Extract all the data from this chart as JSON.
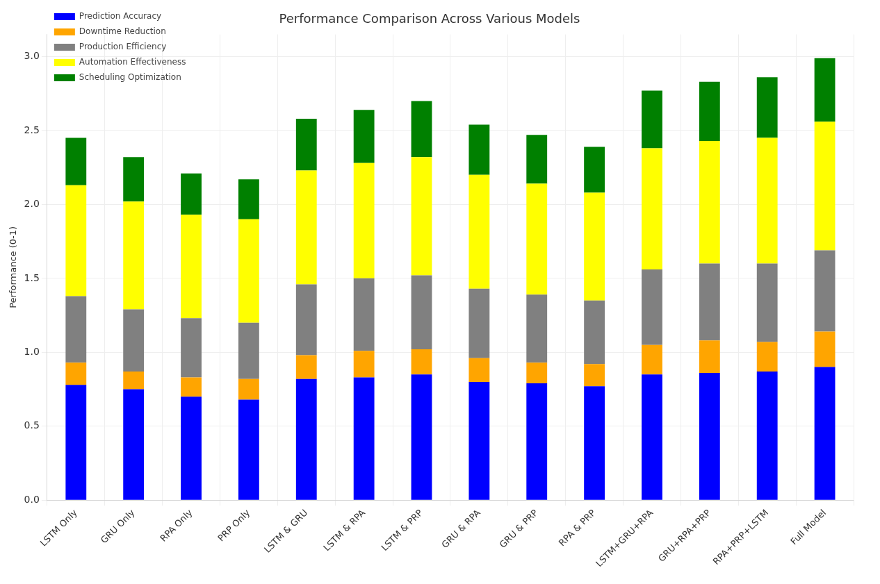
{
  "chart_data": {
    "type": "bar",
    "title": "Performance Comparison Across Various Models",
    "ylabel": "Performance (0-1)",
    "categories": [
      "LSTM Only",
      "GRU Only",
      "RPA Only",
      "PRP Only",
      "LSTM & GRU",
      "LSTM & RPA",
      "LSTM & PRP",
      "GRU & RPA",
      "GRU & PRP",
      "RPA & PRP",
      "LSTM+GRU+RPA",
      "GRU+RPA+PRP",
      "RPA+PRP+LSTM",
      "Full Model"
    ],
    "series": [
      {
        "name": "Prediction Accuracy",
        "color": "#0000ff",
        "values": [
          0.78,
          0.75,
          0.7,
          0.68,
          0.82,
          0.83,
          0.85,
          0.8,
          0.79,
          0.77,
          0.85,
          0.86,
          0.87,
          0.9
        ]
      },
      {
        "name": "Downtime Reduction",
        "color": "#ffa500",
        "values": [
          0.15,
          0.12,
          0.13,
          0.14,
          0.16,
          0.18,
          0.17,
          0.16,
          0.14,
          0.15,
          0.2,
          0.22,
          0.2,
          0.24
        ]
      },
      {
        "name": "Production Efficiency",
        "color": "#808080",
        "values": [
          0.45,
          0.42,
          0.4,
          0.38,
          0.48,
          0.49,
          0.5,
          0.47,
          0.46,
          0.43,
          0.51,
          0.52,
          0.53,
          0.55
        ]
      },
      {
        "name": "Automation Effectiveness",
        "color": "#ffff00",
        "values": [
          0.75,
          0.73,
          0.7,
          0.7,
          0.77,
          0.78,
          0.8,
          0.77,
          0.75,
          0.73,
          0.82,
          0.83,
          0.85,
          0.87
        ]
      },
      {
        "name": "Scheduling Optimization",
        "color": "#008000",
        "values": [
          0.32,
          0.3,
          0.28,
          0.27,
          0.35,
          0.36,
          0.38,
          0.34,
          0.33,
          0.31,
          0.39,
          0.4,
          0.41,
          0.43
        ]
      }
    ],
    "stacked": true,
    "ylim": [
      0,
      3.15
    ],
    "yticks": [
      {
        "value": 0,
        "label": "0.0"
      },
      {
        "value": 0.5,
        "label": "0.5"
      },
      {
        "value": 1,
        "label": "1.0"
      },
      {
        "value": 1.5,
        "label": "1.5"
      },
      {
        "value": 2,
        "label": "2.0"
      },
      {
        "value": 2.5,
        "label": "2.5"
      },
      {
        "value": 3,
        "label": "3.0"
      }
    ],
    "grid": true,
    "legend": "top left"
  }
}
